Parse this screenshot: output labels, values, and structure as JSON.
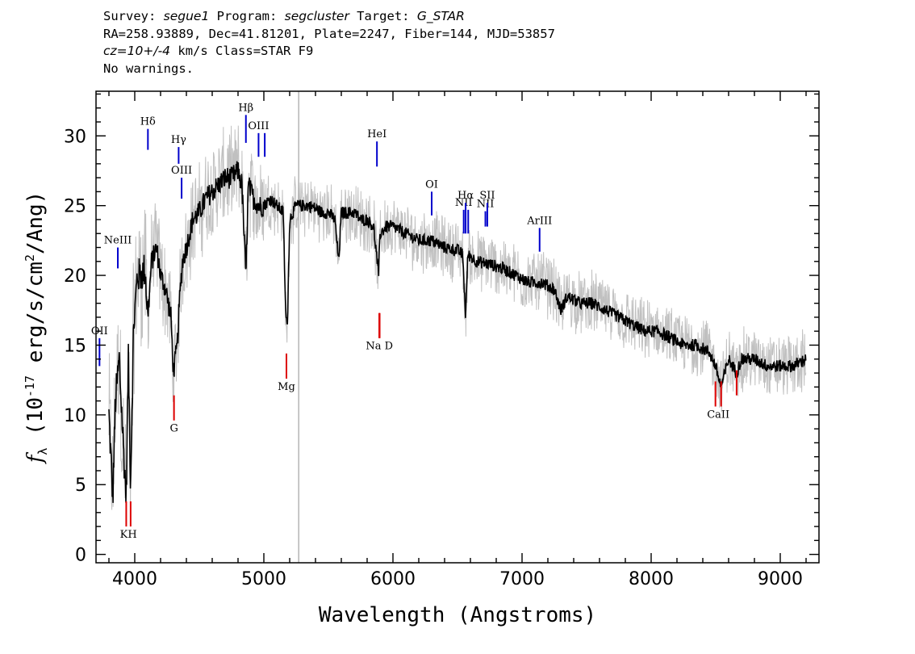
{
  "header": {
    "line1": {
      "survey_label": "Survey: ",
      "survey": "segue1",
      "program_label": " Program: ",
      "program": "segcluster",
      "target_label": " Target: ",
      "target": "G_STAR"
    },
    "line2": "RA=258.93889, Dec=41.81201, Plate=2247, Fiber=144, MJD=53857",
    "line3": {
      "cz": "cz=10+/-4",
      "rest": " km/s Class=STAR F9"
    },
    "line4": "No warnings."
  },
  "colors": {
    "flux": "#000000",
    "noise": "#c0c0c0",
    "emission_line": "#0000cc",
    "absorption_line": "#dd0000",
    "marker": "#b4b4b4"
  },
  "chart_data": {
    "type": "line",
    "xlabel": "Wavelength (Angstroms)",
    "ylabel_prefix": "f",
    "ylabel_sub": "λ",
    "ylabel_main": " (10",
    "ylabel_exp": "-17",
    "ylabel_rest": " erg/s/cm",
    "ylabel_exp2": "2",
    "ylabel_end": "/Ang)",
    "xlim": [
      3700,
      9300
    ],
    "ylim": [
      -0.6,
      33.2
    ],
    "x_ticks": [
      4000,
      5000,
      6000,
      7000,
      8000,
      9000
    ],
    "y_ticks": [
      0,
      5,
      10,
      15,
      20,
      25,
      30
    ],
    "vertical_marker_x": 5270,
    "spectrum_points": [
      [
        3800,
        10.0
      ],
      [
        3830,
        4.0
      ],
      [
        3850,
        11.0
      ],
      [
        3880,
        14.0
      ],
      [
        3905,
        9.0
      ],
      [
        3934,
        4.0
      ],
      [
        3950,
        14.0
      ],
      [
        3968,
        5.0
      ],
      [
        3990,
        16.0
      ],
      [
        4020,
        20.0
      ],
      [
        4050,
        20.0
      ],
      [
        4080,
        20.5
      ],
      [
        4101,
        17.0
      ],
      [
        4130,
        21.0
      ],
      [
        4170,
        22.0
      ],
      [
        4200,
        20.0
      ],
      [
        4240,
        19.0
      ],
      [
        4280,
        17.0
      ],
      [
        4300,
        13.0
      ],
      [
        4330,
        15.0
      ],
      [
        4345,
        18.0
      ],
      [
        4370,
        21.0
      ],
      [
        4400,
        22.0
      ],
      [
        4450,
        24.0
      ],
      [
        4500,
        24.5
      ],
      [
        4550,
        25.5
      ],
      [
        4600,
        26.0
      ],
      [
        4650,
        26.5
      ],
      [
        4700,
        27.0
      ],
      [
        4750,
        27.0
      ],
      [
        4800,
        27.5
      ],
      [
        4830,
        26.5
      ],
      [
        4861,
        20.0
      ],
      [
        4880,
        26.5
      ],
      [
        4920,
        25.5
      ],
      [
        4960,
        25.0
      ],
      [
        5000,
        25.0
      ],
      [
        5050,
        25.5
      ],
      [
        5100,
        25.0
      ],
      [
        5150,
        24.5
      ],
      [
        5167,
        18.0
      ],
      [
        5175,
        16.5
      ],
      [
        5184,
        17.0
      ],
      [
        5200,
        24.0
      ],
      [
        5250,
        25.0
      ],
      [
        5300,
        25.0
      ],
      [
        5350,
        25.0
      ],
      [
        5400,
        24.8
      ],
      [
        5450,
        24.5
      ],
      [
        5500,
        24.5
      ],
      [
        5550,
        24.0
      ],
      [
        5580,
        21.0
      ],
      [
        5600,
        24.5
      ],
      [
        5650,
        24.5
      ],
      [
        5700,
        24.5
      ],
      [
        5750,
        24.0
      ],
      [
        5800,
        24.0
      ],
      [
        5850,
        23.5
      ],
      [
        5889,
        20.0
      ],
      [
        5900,
        23.0
      ],
      [
        5950,
        23.5
      ],
      [
        6000,
        23.5
      ],
      [
        6100,
        23.0
      ],
      [
        6200,
        22.5
      ],
      [
        6300,
        22.5
      ],
      [
        6400,
        22.0
      ],
      [
        6500,
        21.8
      ],
      [
        6540,
        21.5
      ],
      [
        6563,
        17.0
      ],
      [
        6580,
        21.5
      ],
      [
        6650,
        21.0
      ],
      [
        6750,
        20.8
      ],
      [
        6850,
        20.5
      ],
      [
        6950,
        20.0
      ],
      [
        7050,
        19.5
      ],
      [
        7150,
        19.5
      ],
      [
        7250,
        19.0
      ],
      [
        7300,
        17.5
      ],
      [
        7350,
        18.5
      ],
      [
        7450,
        18.0
      ],
      [
        7550,
        18.0
      ],
      [
        7650,
        17.5
      ],
      [
        7750,
        17.0
      ],
      [
        7850,
        16.5
      ],
      [
        7950,
        16.0
      ],
      [
        8050,
        16.0
      ],
      [
        8150,
        15.5
      ],
      [
        8250,
        15.0
      ],
      [
        8350,
        15.0
      ],
      [
        8450,
        14.5
      ],
      [
        8498,
        13.5
      ],
      [
        8542,
        12.0
      ],
      [
        8600,
        14.0
      ],
      [
        8662,
        13.0
      ],
      [
        8700,
        14.0
      ],
      [
        8800,
        14.0
      ],
      [
        8900,
        13.5
      ],
      [
        9000,
        13.5
      ],
      [
        9100,
        13.5
      ],
      [
        9200,
        14.0
      ]
    ],
    "emission_lines": [
      {
        "label": "OII",
        "x": 3727,
        "y_low": 13.5,
        "y_high": 15.5
      },
      {
        "label": "NeIII",
        "x": 3869,
        "y_low": 20.5,
        "y_high": 22.0
      },
      {
        "label": "Hδ",
        "x": 4102,
        "y_low": 29.0,
        "y_high": 30.5
      },
      {
        "label": "Hγ",
        "x": 4340,
        "y_low": 28.0,
        "y_high": 29.2
      },
      {
        "label": "OIII",
        "x": 4363,
        "y_low": 25.5,
        "y_high": 27.0
      },
      {
        "label": "Hβ",
        "x": 4861,
        "y_low": 29.5,
        "y_high": 31.5
      },
      {
        "label": "OIII",
        "x": 4959,
        "y_low": 28.5,
        "y_high": 30.2
      },
      {
        "label": "",
        "x": 5007,
        "y_low": 28.5,
        "y_high": 30.2
      },
      {
        "label": "HeI",
        "x": 5876,
        "y_low": 27.8,
        "y_high": 29.6
      },
      {
        "label": "OI",
        "x": 6300,
        "y_low": 24.3,
        "y_high": 26.0
      },
      {
        "label": "NII",
        "x": 6548,
        "y_low": 23.0,
        "y_high": 24.7
      },
      {
        "label": "Hα",
        "x": 6563,
        "y_low": 23.0,
        "y_high": 25.2
      },
      {
        "label": "",
        "x": 6583,
        "y_low": 23.0,
        "y_high": 24.7
      },
      {
        "label": "NII",
        "x": 6716,
        "y_low": 23.5,
        "y_high": 24.6
      },
      {
        "label": "SII",
        "x": 6731,
        "y_low": 23.5,
        "y_high": 25.2
      },
      {
        "label": "ArIII",
        "x": 7136,
        "y_low": 21.7,
        "y_high": 23.4
      }
    ],
    "absorption_lines": [
      {
        "label": "K",
        "x": 3934,
        "y_low": 2.0,
        "y_high": 3.8
      },
      {
        "label": "H",
        "x": 3968,
        "y_low": 2.0,
        "y_high": 3.8
      },
      {
        "label": "G",
        "x": 4304,
        "y_low": 9.6,
        "y_high": 11.4
      },
      {
        "label": "Mg",
        "x": 5175,
        "y_low": 12.6,
        "y_high": 14.4
      },
      {
        "label": "Na",
        "x": 5894,
        "y_low": 15.5,
        "y_high": 17.3
      },
      {
        "label": "D",
        "x": 5897,
        "y_low": 15.5,
        "y_high": 17.3
      },
      {
        "label": "CaII",
        "x": 8498,
        "y_low": 10.6,
        "y_high": 12.4
      },
      {
        "label": "",
        "x": 8542,
        "y_low": 10.6,
        "y_high": 12.4
      },
      {
        "label": "",
        "x": 8662,
        "y_low": 11.4,
        "y_high": 13.2
      }
    ],
    "absorption_labels": [
      {
        "text": "KH",
        "x": 3951,
        "y": 1.2
      },
      {
        "text": "G",
        "x": 4304,
        "y": 8.8
      },
      {
        "text": "Mg",
        "x": 5175,
        "y": 11.8
      },
      {
        "text": "Na  D",
        "x": 5895,
        "y": 14.7
      },
      {
        "text": "CaII",
        "x": 8520,
        "y": 9.8
      }
    ]
  }
}
